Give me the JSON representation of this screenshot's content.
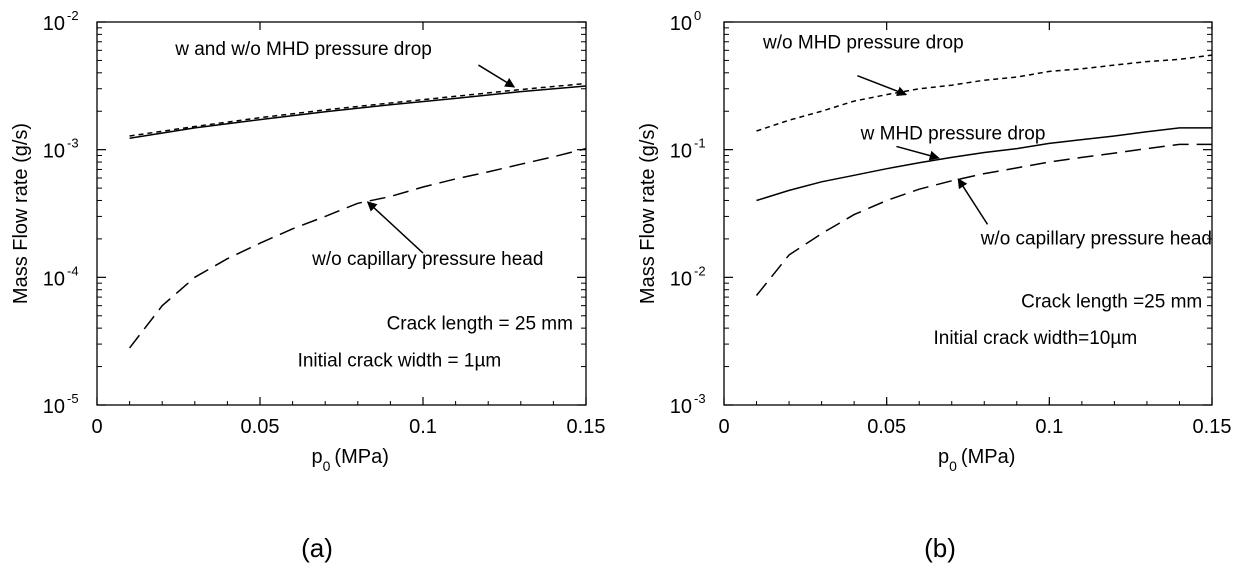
{
  "chart_data": [
    {
      "type": "line",
      "label": "(a)",
      "xlabel": "p",
      "xlabel_sub": "0",
      "xlabel_unit": "(MPa)",
      "ylabel": "Mass Flow rate (g/s)",
      "xlim": [
        0,
        0.15
      ],
      "ylim": [
        1e-05,
        0.01
      ],
      "yscale": "log",
      "x_ticks": [
        {
          "v": 0,
          "label": "0"
        },
        {
          "v": 0.05,
          "label": "0.05"
        },
        {
          "v": 0.1,
          "label": "0.1"
        },
        {
          "v": 0.15,
          "label": "0.15"
        }
      ],
      "y_ticks": [
        {
          "v": 1e-05,
          "base": "10",
          "exp": "-5"
        },
        {
          "v": 0.0001,
          "base": "10",
          "exp": "-4"
        },
        {
          "v": 0.001,
          "base": "10",
          "exp": "-3"
        },
        {
          "v": 0.01,
          "base": "10",
          "exp": "-2"
        }
      ],
      "series": [
        {
          "style": "solid",
          "x": [
            0.01,
            0.03,
            0.05,
            0.07,
            0.09,
            0.11,
            0.13,
            0.15
          ],
          "y": [
            0.00123,
            0.00148,
            0.00172,
            0.00198,
            0.00225,
            0.00252,
            0.00285,
            0.00315
          ]
        },
        {
          "style": "short-dash",
          "x": [
            0.01,
            0.03,
            0.05,
            0.07,
            0.09,
            0.11,
            0.13,
            0.15
          ],
          "y": [
            0.00128,
            0.00152,
            0.00178,
            0.00205,
            0.00232,
            0.00262,
            0.00296,
            0.0033
          ]
        },
        {
          "style": "long-dash",
          "x": [
            0.01,
            0.02,
            0.03,
            0.04,
            0.05,
            0.06,
            0.07,
            0.08,
            0.09,
            0.1,
            0.11,
            0.12,
            0.13,
            0.14,
            0.15
          ],
          "y": [
            2.8e-05,
            6e-05,
            0.0001,
            0.00014,
            0.000185,
            0.00024,
            0.0003,
            0.00038,
            0.00043,
            0.00051,
            0.00059,
            0.00067,
            0.00077,
            0.00088,
            0.00102
          ]
        }
      ],
      "annotations": [
        {
          "text": "w and w/o MHD pressure drop",
          "x": 0.024,
          "y": 0.0055,
          "arrow_from": [
            0.117,
            0.0046
          ],
          "arrow_to": [
            0.128,
            0.0031
          ]
        },
        {
          "text": "w/o capillary pressure head",
          "x": 0.066,
          "y": 0.000125,
          "arrow_from": [
            0.1,
            0.000155
          ],
          "arrow_to": [
            0.083,
            0.00039
          ]
        },
        {
          "text": "Crack length = 25 mm",
          "x": 0.146,
          "y": 3.9e-05,
          "anchor": "end"
        },
        {
          "text": "Initial crack width = 1",
          "x": 0.124,
          "y": 2e-05,
          "anchor": "end",
          "suffix": "m",
          "greek": "µ"
        }
      ]
    },
    {
      "type": "line",
      "label": "(b)",
      "xlabel": "p",
      "xlabel_sub": "0",
      "xlabel_unit": "(MPa)",
      "ylabel": "Mass Flow rate (g/s)",
      "xlim": [
        0,
        0.15
      ],
      "ylim": [
        0.001,
        1
      ],
      "yscale": "log",
      "x_ticks": [
        {
          "v": 0,
          "label": "0"
        },
        {
          "v": 0.05,
          "label": "0.05"
        },
        {
          "v": 0.1,
          "label": "0.1"
        },
        {
          "v": 0.15,
          "label": "0.15"
        }
      ],
      "y_ticks": [
        {
          "v": 0.001,
          "base": "10",
          "exp": "-3"
        },
        {
          "v": 0.01,
          "base": "10",
          "exp": "-2"
        },
        {
          "v": 0.1,
          "base": "10",
          "exp": "-1"
        },
        {
          "v": 1,
          "base": "10",
          "exp": "0"
        }
      ],
      "series": [
        {
          "style": "short-dash",
          "x": [
            0.01,
            0.02,
            0.03,
            0.04,
            0.05,
            0.06,
            0.07,
            0.08,
            0.09,
            0.1,
            0.11,
            0.12,
            0.13,
            0.14,
            0.15
          ],
          "y": [
            0.14,
            0.17,
            0.2,
            0.24,
            0.27,
            0.3,
            0.32,
            0.35,
            0.37,
            0.41,
            0.43,
            0.46,
            0.49,
            0.51,
            0.55
          ]
        },
        {
          "style": "solid",
          "x": [
            0.01,
            0.02,
            0.03,
            0.04,
            0.05,
            0.06,
            0.07,
            0.08,
            0.09,
            0.1,
            0.11,
            0.12,
            0.13,
            0.14,
            0.15
          ],
          "y": [
            0.04,
            0.048,
            0.056,
            0.063,
            0.071,
            0.079,
            0.087,
            0.095,
            0.102,
            0.112,
            0.12,
            0.128,
            0.138,
            0.148,
            0.148
          ]
        },
        {
          "style": "long-dash",
          "x": [
            0.01,
            0.02,
            0.03,
            0.04,
            0.05,
            0.06,
            0.07,
            0.08,
            0.09,
            0.1,
            0.11,
            0.12,
            0.13,
            0.14,
            0.15
          ],
          "y": [
            0.0072,
            0.015,
            0.022,
            0.031,
            0.04,
            0.049,
            0.057,
            0.065,
            0.072,
            0.08,
            0.087,
            0.094,
            0.102,
            0.11,
            0.11
          ]
        }
      ],
      "annotations": [
        {
          "text": "w/o MHD pressure drop",
          "x": 0.012,
          "y": 0.62,
          "arrow_from": [
            0.041,
            0.38
          ],
          "arrow_to": [
            0.056,
            0.27
          ]
        },
        {
          "text": "w MHD pressure drop",
          "x": 0.042,
          "y": 0.12,
          "arrow_from": [
            0.053,
            0.106
          ],
          "arrow_to": [
            0.066,
            0.086
          ]
        },
        {
          "text": "w/o capillary pressure head",
          "x": 0.15,
          "y": 0.018,
          "anchor": "end",
          "arrow_from": [
            0.081,
            0.026
          ],
          "arrow_to": [
            0.072,
            0.059
          ]
        },
        {
          "text": "Crack length =25 mm",
          "x": 0.147,
          "y": 0.0058,
          "anchor": "end"
        },
        {
          "text": "Initial crack width=10",
          "x": 0.127,
          "y": 0.003,
          "anchor": "end",
          "suffix": "m",
          "greek": "µ"
        }
      ]
    }
  ]
}
